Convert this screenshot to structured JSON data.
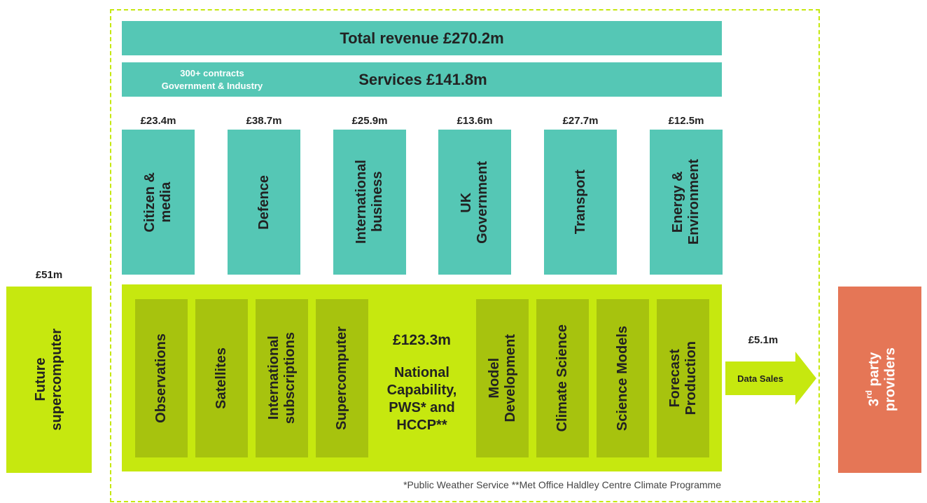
{
  "total_revenue": "Total revenue £270.2m",
  "services": {
    "label": "Services £141.8m",
    "note_lines": [
      "300+ contracts",
      "Government & Industry"
    ]
  },
  "sectors": [
    {
      "value": "£23.4m",
      "label_lines": [
        "Citizen &",
        "media"
      ]
    },
    {
      "value": "£38.7m",
      "label_lines": [
        "Defence"
      ]
    },
    {
      "value": "£25.9m",
      "label_lines": [
        "International",
        "business"
      ]
    },
    {
      "value": "£13.6m",
      "label_lines": [
        "UK",
        "Government"
      ]
    },
    {
      "value": "£27.7m",
      "label_lines": [
        "Transport"
      ]
    },
    {
      "value": "£12.5m",
      "label_lines": [
        "Energy &",
        "Environment"
      ]
    }
  ],
  "national_capability": {
    "value": "£123.3m",
    "label_lines": [
      "National",
      "Capability,",
      "PWS* and",
      "HCCP**"
    ],
    "items_left": [
      [
        "Observations"
      ],
      [
        "Satellites"
      ],
      [
        "International",
        "subscriptions"
      ],
      [
        "Supercomputer"
      ]
    ],
    "items_right": [
      [
        "Model",
        "Development"
      ],
      [
        "Climate Science"
      ],
      [
        "Science Models"
      ],
      [
        "Forecast",
        "Production"
      ]
    ]
  },
  "future_supercomputer": {
    "value": "£51m",
    "label_lines": [
      "Future",
      "supercomputer"
    ]
  },
  "data_sales": {
    "value": "£5.1m",
    "label": "Data Sales"
  },
  "third_party": {
    "prefix": "3",
    "sup": "rd",
    "rest": " party",
    "line2": "providers"
  },
  "footnote": "*Public Weather Service   **Met Office Haldley Centre Climate Programme"
}
